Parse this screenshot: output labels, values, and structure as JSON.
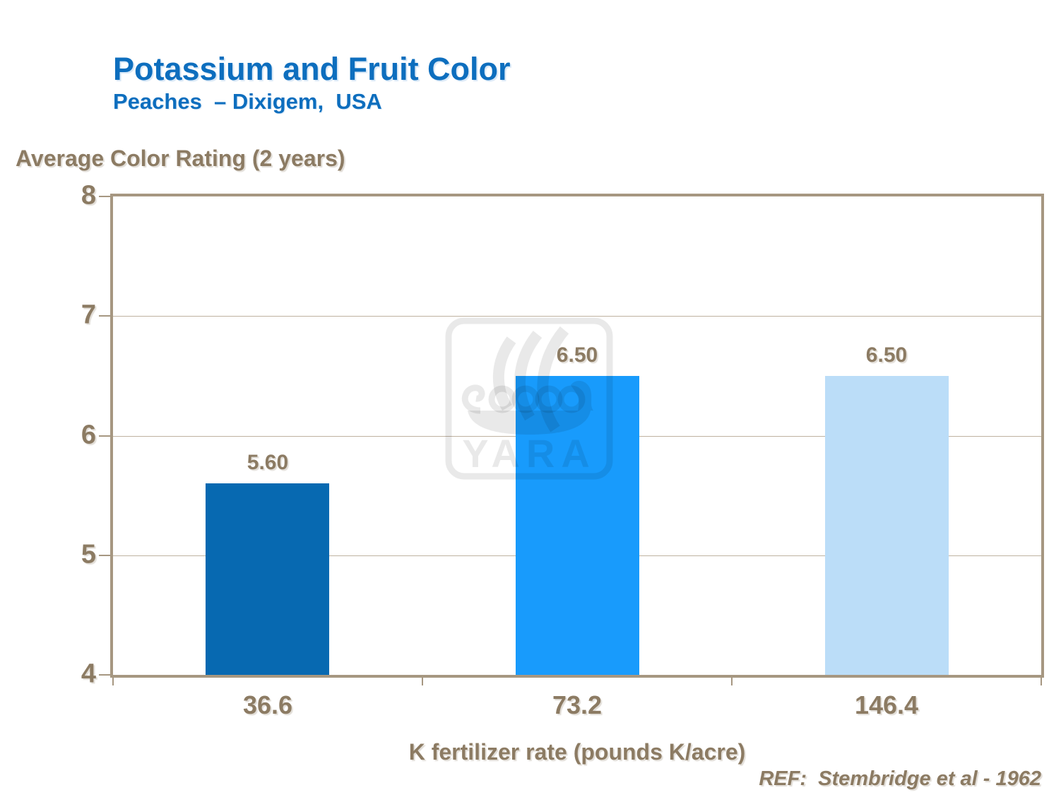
{
  "header": {
    "title": "Potassium and Fruit Color",
    "subtitle": "Peaches  – Dixigem,  USA"
  },
  "chart": {
    "y_axis_title": "Average Color Rating (2 years)",
    "x_axis_title": "K fertilizer rate (pounds K/acre)"
  },
  "footer": {
    "reference": "REF:  Stembridge et al - 1962"
  },
  "watermark": {
    "name": "yara-logo",
    "text": "YARA"
  },
  "colors": {
    "title_blue": "#0D6EBE",
    "label_taupe": "#8C7B63",
    "axis_taupe": "#A69781",
    "gridline_taupe": "#BFB2A0"
  },
  "chart_data": {
    "type": "bar",
    "title": "Potassium and Fruit Color",
    "subtitle": "Peaches – Dixigem, USA",
    "categories": [
      "36.6",
      "73.2",
      "146.4"
    ],
    "values": [
      5.6,
      6.5,
      6.5
    ],
    "value_labels": [
      "5.60",
      "6.50",
      "6.50"
    ],
    "bar_colors": [
      "#0769B1",
      "#189BFC",
      "#BBDDF8"
    ],
    "xlabel": "K fertilizer rate (pounds K/acre)",
    "ylabel": "Average Color Rating (2 years)",
    "ylim": [
      4,
      8
    ],
    "yticks": [
      8,
      7,
      6,
      5,
      4
    ],
    "grid": "horizontal",
    "legend": "none",
    "annotation": "REF: Stembridge et al - 1962"
  }
}
